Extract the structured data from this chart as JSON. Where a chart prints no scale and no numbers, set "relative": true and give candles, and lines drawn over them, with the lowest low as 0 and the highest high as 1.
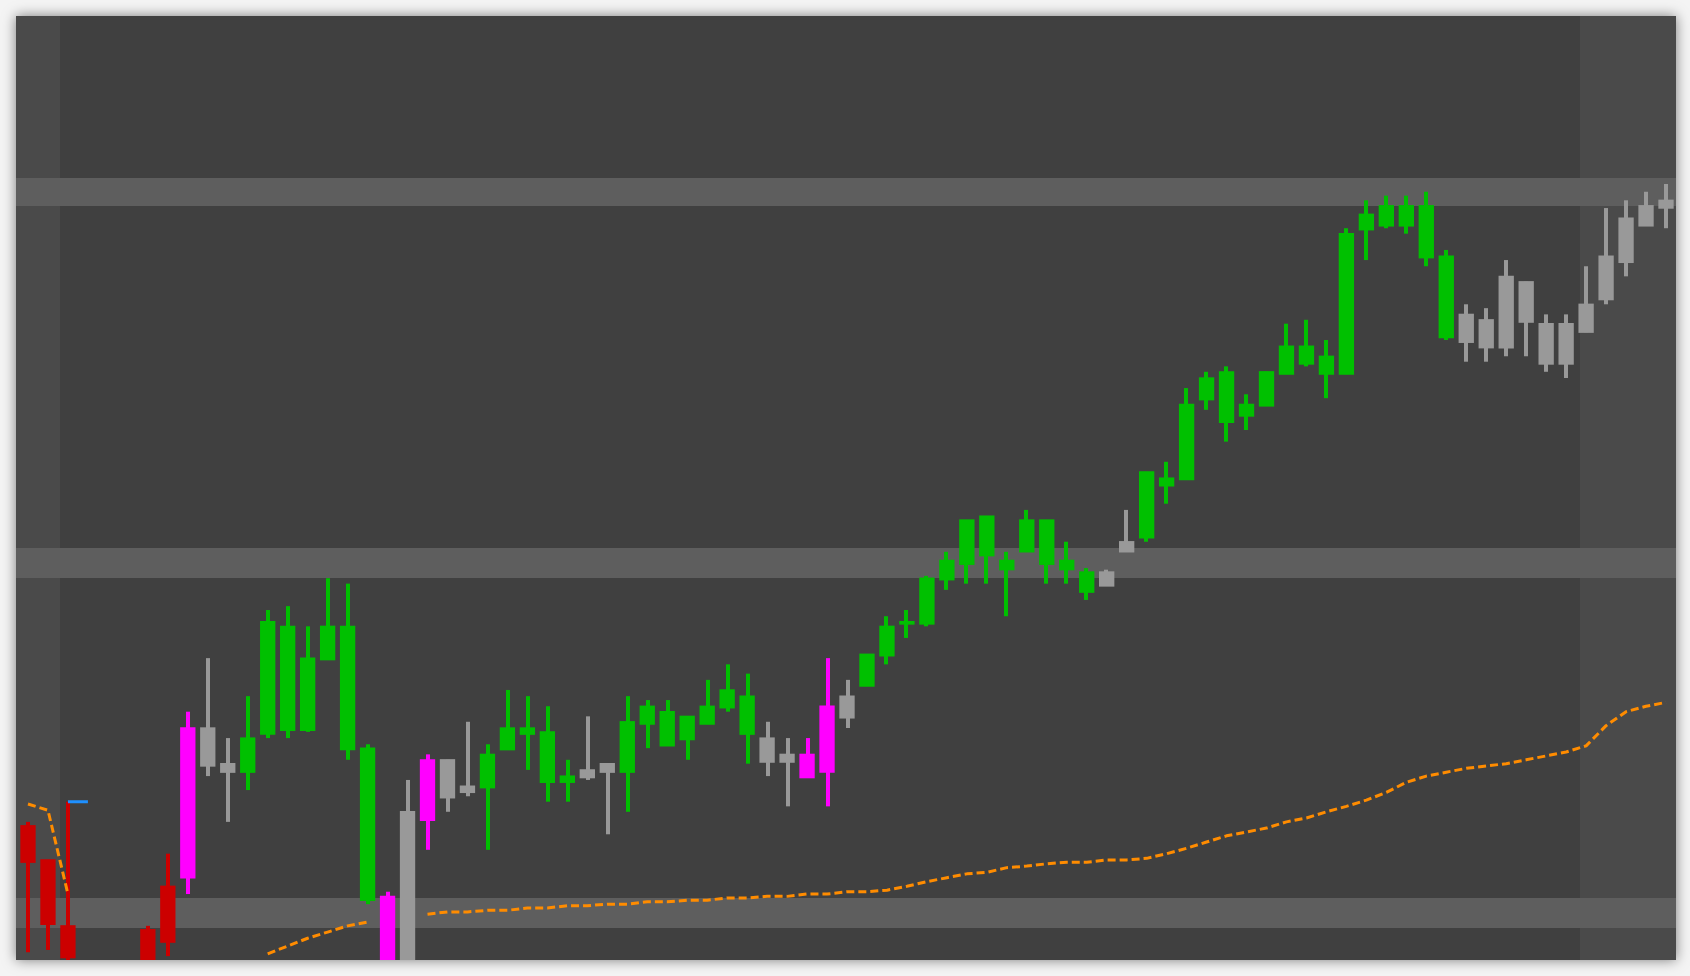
{
  "chart_data": {
    "type": "candlestick",
    "relative": true,
    "tick_labels": false,
    "categories": [
      null,
      null,
      null,
      null,
      null,
      null,
      null,
      null,
      null,
      null,
      null,
      null,
      null,
      null,
      null,
      null,
      null,
      null,
      null,
      null,
      null,
      null,
      null,
      null,
      null,
      null,
      null,
      null,
      null,
      null,
      null,
      null,
      null,
      null,
      null,
      null,
      null,
      null,
      null,
      null,
      null,
      null,
      null,
      null,
      null,
      null,
      null,
      null,
      null,
      null,
      null,
      null,
      null,
      null,
      null,
      null,
      null,
      null,
      null,
      null,
      null,
      null,
      null,
      null,
      null,
      null,
      null,
      null,
      null,
      null,
      null,
      null,
      null,
      null,
      null,
      null,
      null,
      null,
      null,
      null,
      null,
      null,
      null
    ],
    "ohlc": [
      [
        0.173,
        0.178,
        0.01,
        0.126
      ],
      [
        0.129,
        0.129,
        0.013,
        0.046
      ],
      [
        0.044,
        0.204,
        0,
        0.003
      ],
      null,
      null,
      null,
      [
        0.039,
        0.044,
        0,
        0
      ],
      [
        0.095,
        0.137,
        0.005,
        0.023
      ],
      [
        0.299,
        0.32,
        0.085,
        0.106
      ],
      [
        0.299,
        0.389,
        0.237,
        0.25
      ],
      [
        0.253,
        0.286,
        0.178,
        0.242
      ],
      [
        0.242,
        0.34,
        0.219,
        0.286
      ],
      [
        0.291,
        0.451,
        0.286,
        0.436
      ],
      [
        0.296,
        0.456,
        0.286,
        0.43
      ],
      [
        0.296,
        0.43,
        0.294,
        0.389
      ],
      [
        0.387,
        0.492,
        0.387,
        0.43
      ],
      [
        0.271,
        0.485,
        0.258,
        0.43
      ],
      [
        0.077,
        0.278,
        0.072,
        0.273
      ],
      [
        0.082,
        0.088,
        0,
        0
      ],
      [
        0.191,
        0.232,
        0,
        0
      ],
      [
        0.258,
        0.265,
        0.142,
        0.18
      ],
      [
        0.258,
        0.258,
        0.191,
        0.209
      ],
      [
        0.224,
        0.307,
        0.211,
        0.216
      ],
      [
        0.222,
        0.278,
        0.142,
        0.265
      ],
      [
        0.271,
        0.348,
        0.271,
        0.299
      ],
      [
        0.291,
        0.34,
        0.245,
        0.299
      ],
      [
        0.229,
        0.327,
        0.204,
        0.294
      ],
      [
        0.229,
        0.258,
        0.204,
        0.237
      ],
      [
        0.245,
        0.314,
        0.232,
        0.235
      ],
      [
        0.253,
        0.253,
        0.162,
        0.242
      ],
      [
        0.242,
        0.34,
        0.191,
        0.307
      ],
      [
        0.304,
        0.335,
        0.273,
        0.327
      ],
      [
        0.276,
        0.335,
        0.276,
        0.32
      ],
      [
        0.284,
        0.314,
        0.258,
        0.314
      ],
      [
        0.304,
        0.361,
        0.304,
        0.327
      ],
      [
        0.325,
        0.381,
        0.32,
        0.348
      ],
      [
        0.291,
        0.369,
        0.253,
        0.34
      ],
      [
        0.286,
        0.307,
        0.237,
        0.255
      ],
      [
        0.265,
        0.286,
        0.198,
        0.255
      ],
      [
        0.265,
        0.286,
        0.235,
        0.235
      ],
      [
        0.327,
        0.389,
        0.198,
        0.242
      ],
      [
        0.34,
        0.361,
        0.299,
        0.312
      ],
      [
        0.353,
        0.394,
        0.353,
        0.394
      ],
      [
        0.392,
        0.443,
        0.381,
        0.43
      ],
      [
        0.433,
        0.451,
        0.415,
        0.436
      ],
      [
        0.433,
        0.495,
        0.43,
        0.492
      ],
      [
        0.49,
        0.526,
        0.477,
        0.515
      ],
      [
        0.51,
        0.567,
        0.485,
        0.567
      ],
      [
        0.521,
        0.572,
        0.485,
        0.572
      ],
      [
        0.503,
        0.526,
        0.443,
        0.515
      ],
      [
        0.526,
        0.58,
        0.526,
        0.567
      ],
      [
        0.51,
        0.567,
        0.485,
        0.567
      ],
      [
        0.503,
        0.539,
        0.485,
        0.515
      ],
      [
        0.474,
        0.505,
        0.464,
        0.5
      ],
      [
        0.5,
        0.503,
        0.482,
        0.482
      ],
      [
        0.539,
        0.58,
        0.526,
        0.526
      ],
      [
        0.544,
        0.629,
        0.539,
        0.629
      ],
      [
        0.611,
        0.642,
        0.588,
        0.621
      ],
      [
        0.619,
        0.737,
        0.619,
        0.716
      ],
      [
        0.722,
        0.758,
        0.709,
        0.75
      ],
      [
        0.693,
        0.765,
        0.668,
        0.758
      ],
      [
        0.701,
        0.729,
        0.683,
        0.716
      ],
      [
        0.714,
        0.758,
        0.714,
        0.758
      ],
      [
        0.755,
        0.82,
        0.755,
        0.791
      ],
      [
        0.768,
        0.825,
        0.765,
        0.791
      ],
      [
        0.755,
        0.799,
        0.724,
        0.778
      ],
      [
        0.755,
        0.943,
        0.755,
        0.936
      ],
      [
        0.941,
        0.979,
        0.902,
        0.961
      ],
      [
        0.946,
        0.985,
        0.943,
        0.972
      ],
      [
        0.946,
        0.985,
        0.936,
        0.972
      ],
      [
        0.905,
        0.99,
        0.894,
        0.972
      ],
      [
        0.802,
        0.915,
        0.799,
        0.907
      ],
      [
        0.832,
        0.845,
        0.771,
        0.796
      ],
      [
        0.825,
        0.84,
        0.771,
        0.789
      ],
      [
        0.881,
        0.902,
        0.778,
        0.789
      ],
      [
        0.874,
        0.874,
        0.778,
        0.822
      ],
      [
        0.82,
        0.832,
        0.758,
        0.768
      ],
      [
        0.82,
        0.832,
        0.75,
        0.768
      ],
      [
        0.845,
        0.894,
        0.809,
        0.809
      ],
      [
        0.907,
        0.969,
        0.845,
        0.851
      ],
      [
        0.956,
        0.979,
        0.881,
        0.899
      ],
      [
        0.972,
        0.99,
        0.946,
        0.946
      ],
      [
        0.979,
        1,
        0.943,
        0.969
      ]
    ],
    "colors": [
      "#cc0000",
      "#cc0000",
      "#cc0000",
      null,
      null,
      null,
      "#cc0000",
      "#cc0000",
      "#ff00ff",
      "#999999",
      "#999999",
      "#00c000",
      "#00c000",
      "#00c000",
      "#00c000",
      "#00c000",
      "#00c000",
      "#00c000",
      "#ff00ff",
      "#999999",
      "#ff00ff",
      "#999999",
      "#999999",
      "#00c000",
      "#00c000",
      "#00c000",
      "#00c000",
      "#00c000",
      "#999999",
      "#999999",
      "#00c000",
      "#00c000",
      "#00c000",
      "#00c000",
      "#00c000",
      "#00c000",
      "#00c000",
      "#999999",
      "#999999",
      "#ff00ff",
      "#ff00ff",
      "#999999",
      "#00c000",
      "#00c000",
      "#00c000",
      "#00c000",
      "#00c000",
      "#00c000",
      "#00c000",
      "#00c000",
      "#00c000",
      "#00c000",
      "#00c000",
      "#00c000",
      "#999999",
      "#999999",
      "#00c000",
      "#00c000",
      "#00c000",
      "#00c000",
      "#00c000",
      "#00c000",
      "#00c000",
      "#00c000",
      "#00c000",
      "#00c000",
      "#00c000",
      "#00c000",
      "#00c000",
      "#00c000",
      "#00c000",
      "#00c000",
      "#999999",
      "#999999",
      "#999999",
      "#999999",
      "#999999",
      "#999999",
      "#999999",
      "#999999",
      "#999999",
      "#999999",
      "#999999"
    ],
    "series": [
      {
        "type": "line",
        "color": "#ff8c00",
        "line_style": "dashed",
        "values": [
          0.201,
          0.193,
          0.085,
          null,
          null,
          null,
          null,
          null,
          null,
          null,
          null,
          null,
          0.008,
          0.018,
          0.028,
          0.036,
          0.044,
          0.049,
          null,
          null,
          0.059,
          0.062,
          0.062,
          0.064,
          0.064,
          0.067,
          0.067,
          0.07,
          0.07,
          0.072,
          0.072,
          0.075,
          0.075,
          0.077,
          0.077,
          0.08,
          0.08,
          0.082,
          0.082,
          0.085,
          0.085,
          0.088,
          0.088,
          0.09,
          0.095,
          0.101,
          0.106,
          0.111,
          0.113,
          0.119,
          0.121,
          0.124,
          0.126,
          0.126,
          0.129,
          0.129,
          0.131,
          0.137,
          0.144,
          0.152,
          0.16,
          0.165,
          0.17,
          0.178,
          0.183,
          0.191,
          0.198,
          0.206,
          0.216,
          0.229,
          0.237,
          0.242,
          0.247,
          0.25,
          0.253,
          0.258,
          0.263,
          0.268,
          0.276,
          0.302,
          0.32,
          0.327,
          0.332
        ]
      },
      {
        "type": "line",
        "color": "#1e90ff",
        "values": [
          null,
          null,
          0.204,
          0.204,
          null,
          null,
          null,
          null,
          null,
          null,
          null,
          null,
          null,
          null,
          null,
          null,
          null,
          null,
          null,
          null,
          null,
          null,
          null,
          null,
          null,
          null,
          null,
          null,
          null,
          null,
          null,
          null,
          null,
          null,
          null,
          null,
          null,
          null,
          null,
          null,
          null,
          null,
          null,
          null,
          null,
          null,
          null,
          null,
          null,
          null,
          null,
          null,
          null,
          null,
          null,
          null,
          null,
          null,
          null,
          null,
          null,
          null,
          null,
          null,
          null,
          null,
          null,
          null,
          null,
          null,
          null,
          null,
          null,
          null,
          null,
          null,
          null,
          null,
          null,
          null,
          null,
          null,
          null
        ]
      }
    ]
  }
}
